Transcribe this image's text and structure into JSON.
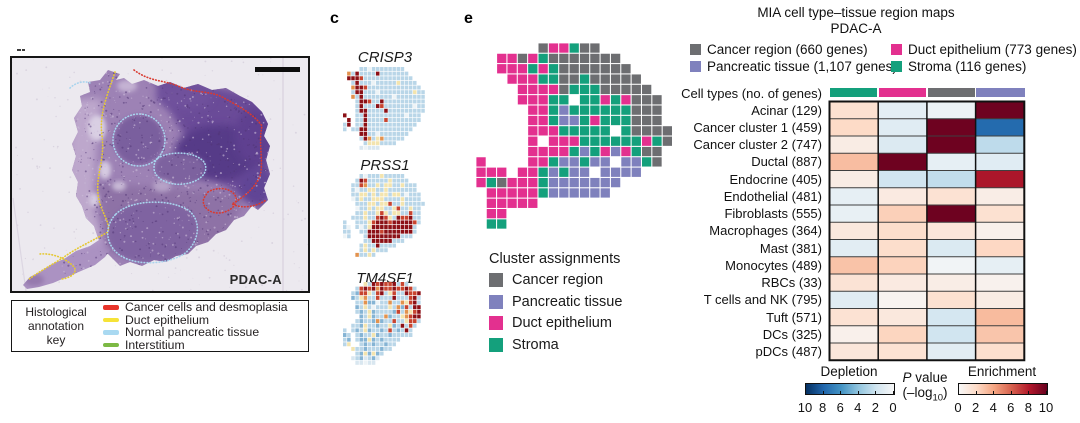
{
  "figure": {
    "panel_c_label": "c",
    "panel_e_label": "e"
  },
  "histology": {
    "sample_label": "PDAC-A",
    "key_title_lines": [
      "Histological",
      "annotation",
      "key"
    ],
    "key_items": [
      {
        "label": "Cancer cells and desmoplasia",
        "color": "#e8352b"
      },
      {
        "label": "Duct epithelium",
        "color": "#f6e337"
      },
      {
        "label": "Normal pancreatic tissue",
        "color": "#a9d9f1"
      },
      {
        "label": "Interstitium",
        "color": "#7cb944"
      }
    ],
    "annotation_colors": {
      "cancer": "#d93a30",
      "duct": "#e5c832",
      "normal": "#a8d4ee",
      "interstitium": "#8ab84e"
    }
  },
  "gene_maps": {
    "genes": [
      "CRISP3",
      "PRSS1",
      "TM4SF1"
    ],
    "palette": {
      "b": "#b9d6e8",
      "B": "#85b4d4",
      "w": "#edf3f6",
      "y": "#f3e4ae",
      "o": "#e2924e",
      "r": "#c8442f",
      "d": "#8c1016",
      "f": "#d9e7f0"
    },
    "grids": {
      "CRISP3": [
        "....bbwbbbbbbbb.......",
        ".obdbbbbdbbbbbbb......",
        ".dddrbbbbbbbbbbbb.....",
        "..bdbbbwbbbbbybbbb....",
        "..oddrbbbbbbbbbbbbb...",
        "..bddbbbwbbbbbbbbybb..",
        "..obdbbbbbbbwbbbbbbb..",
        "...bddrbbdbbbbbbbbbb..",
        "...bdbbbdrbbbbbbbwbb..",
        "...bddbbbbdbbbbbbbbb..",
        "d..bbdbbbbbbbbbwbbb...",
        ".d.bbdbbbbrbbbbbbbb...",
        "bd.bbdbbbbbbbbbbbb....",
        "b.bbddbbbbbbbbbbb.....",
        "....ddbbwbbbbbbb......",
        "....bdobyobbbbb.......",
        ".....byyybbbb.........",
        "....fwfff............."
      ],
      "PRSS1": [
        "....bwbbbybbbbb.......",
        "...bdrbbbbbybbbb......",
        "..bbrobbybyybbybbb....",
        "..bwbbyybbybbbbbbb....",
        "..bbyybybyybyybwbbb...",
        "..wbybbyyybbbbybbbb...",
        "...bbbyybyyrbbybbbbb..",
        "...wbbybyybbyrbbybb...",
        "...bbybbyrybyybbrbb...",
        "..bbbybbrdrybdrrdbb...",
        "b..bbbyrdddrdddddrb...",
        "bw.bwbyddddddddddb....",
        "bb..bbdddrdddddddb....",
        "wb...bddddddddbbb.....",
        ".....bbdddddbbb.......",
        "....bybbdbbbb.........",
        "....bybybbb...........",
        "...obbyb.............."
      ],
      "TM4SF1": [
        ".....ybdrdrrdbrb......",
        "...brdrdodrrdrrdrb....",
        "..bBrrybrdbyrbbdrrd...",
        "..Bbyobbrbbbdbbbrdb...",
        "...bboBBwbbobboyrdb...",
        "...BbybwbbbyboBrbdd...",
        "...bBbyBbbbbBrboyrd...",
        "....BbyBbboBbbyordd...",
        "...bBbbBoBbbrbbyrrb...",
        "..bbBybbBbbyBbdbrb....",
        "b.bBbyBbbBbrbBbdb.....",
        "Bb.bBbbyBbbBbbbbb.....",
        "bB.bBByBbBbbbb........",
        "by..bBbBbbBbb.........",
        "..ybbBbbbBbb..........",
        "...bByByBb............",
        "..fbBfbBf.............",
        "...ffwff.............."
      ]
    }
  },
  "cluster_map": {
    "legend_title": "Cluster assignments",
    "legend_items": [
      {
        "label": "Cancer region",
        "color": "#6d6e71",
        "code": "G"
      },
      {
        "label": "Pancreatic tissue",
        "color": "#7f81bd",
        "code": "P"
      },
      {
        "label": "Duct epithelium",
        "color": "#e3308f",
        "code": "M"
      },
      {
        "label": "Stroma",
        "color": "#14a07c",
        "code": "S"
      }
    ],
    "grid": [
      "......GMMSGG.......",
      "..MMGMSGGGGGGG.....",
      "..MMMSMSGGGGGGG....",
      "...MMMSSGGSGGGGG...",
      "....MMMMGSSSGGGGG..",
      "....MMMSS.SSMSMGGG.",
      ".....MMSPSSSSSSGGG.",
      ".....MMSPPSMSSSGGG.",
      ".....MMMSSSSS.SGGGG",
      ".....M.MMMSSSSSSMSG",
      ".....MMMMSPSMPMSGG.",
      "M....MMSPPSPP.PPSG.",
      "MMM.MMSPSPP.PPPP...",
      "MSGMMMSPPPPPPP.....",
      ".MMMMMSPPPPPP......",
      ".MMMMM.............",
      ".MM................",
      ".SS................"
    ]
  },
  "mia": {
    "title_line1": "MIA cell type–tissue region maps",
    "title_line2": "PDAC-A",
    "legend": [
      {
        "label": "Cancer region (660 genes)",
        "color": "#6d6e71"
      },
      {
        "label": "Duct epithelium (773 genes)",
        "color": "#e3308f"
      },
      {
        "label": "Pancreatic tissue (1,107 genes)",
        "color": "#7f81bd"
      },
      {
        "label": "Stroma (116 genes)",
        "color": "#14a07c"
      }
    ],
    "celltypes_header": "Cell types (no. of genes)",
    "column_strip_colors": [
      "#14a07c",
      "#e3308f",
      "#6d6e71",
      "#7f81bd"
    ],
    "colorbar": {
      "depletion_label": "Depletion",
      "enrichment_label": "Enrichment",
      "pvalue_p": "P",
      "pvalue_rest": " value",
      "log_prefix": "(–log",
      "log_sub": "10",
      "log_suffix": ")",
      "depletion_ticks": [
        "10",
        "8",
        "6",
        "4",
        "2",
        "0"
      ],
      "enrichment_ticks": [
        "0",
        "2",
        "4",
        "6",
        "8",
        "10"
      ]
    }
  },
  "chart_data": {
    "type": "heatmap",
    "title": "MIA cell type–tissue region maps PDAC-A",
    "columns": [
      "Stroma",
      "Duct epithelium",
      "Cancer region",
      "Pancreatic tissue"
    ],
    "column_gene_counts": [
      116,
      773,
      660,
      1107
    ],
    "rows": [
      "Acinar (129)",
      "Cancer cluster 1 (459)",
      "Cancer cluster 2 (747)",
      "Ductal (887)",
      "Endocrine (405)",
      "Endothelial (481)",
      "Fibroblasts (555)",
      "Macrophages (364)",
      "Mast (381)",
      "Monocytes (489)",
      "RBCs (33)",
      "T cells and NK (795)",
      "Tuft (571)",
      "DCs (325)",
      "pDCs (487)"
    ],
    "values_neglog10_p_enrichment_positive": [
      [
        1.6,
        -1.0,
        -0.6,
        9.8
      ],
      [
        2.0,
        -1.2,
        9.8,
        -7.8
      ],
      [
        0.8,
        -1.4,
        9.8,
        -2.6
      ],
      [
        3.1,
        9.8,
        -0.9,
        -1.2
      ],
      [
        0.8,
        -2.0,
        -2.5,
        8.2
      ],
      [
        -0.9,
        0.9,
        1.5,
        0.7
      ],
      [
        -0.8,
        2.4,
        9.8,
        1.6
      ],
      [
        1.1,
        1.8,
        1.2,
        0.5
      ],
      [
        -1.1,
        1.8,
        -1.5,
        2.1
      ],
      [
        2.9,
        2.3,
        -0.3,
        -0.9
      ],
      [
        1.4,
        0.9,
        0.7,
        0.4
      ],
      [
        -1.2,
        0.3,
        1.6,
        0.8
      ],
      [
        1.5,
        1.1,
        -1.8,
        3.2
      ],
      [
        0.5,
        2.2,
        -2.0,
        2.8
      ],
      [
        1.2,
        1.5,
        -1.1,
        1.7
      ]
    ],
    "scale": {
      "range": [
        -10,
        10
      ],
      "colormap": "RdBu reversed",
      "depletion_end": "#053061",
      "enrichment_end": "#67001f",
      "midpoint": "#f7f7f7"
    },
    "legend_position": "top"
  }
}
